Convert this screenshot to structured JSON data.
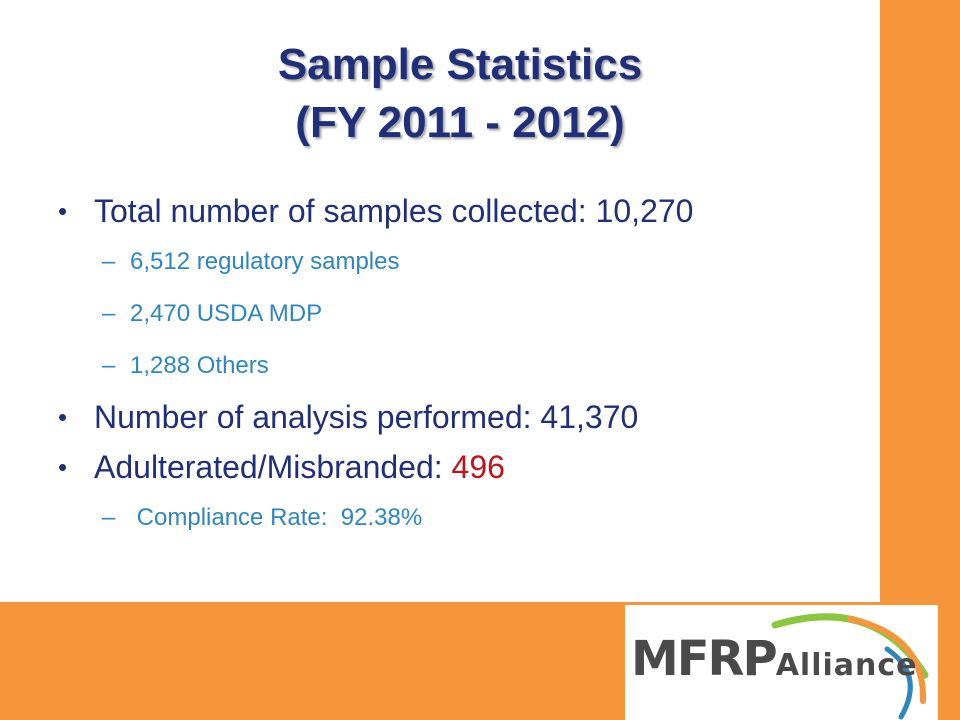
{
  "colors": {
    "orange": "#f7953a",
    "title": "#1f2f7a",
    "body_text": "#1f2f7a",
    "sub_text": "#2e86c1",
    "highlight": "#c0141b",
    "logo_green": "#8cc63f",
    "logo_orange": "#f7953a",
    "logo_blue": "#2e86c1"
  },
  "title": {
    "line1": "Sample Statistics",
    "line2": "(FY 2011 - 2012)"
  },
  "bullets": [
    {
      "text": "Total number of samples collected:  10,270",
      "children": [
        "6,512 regulatory samples",
        "2,470 USDA MDP",
        "1,288 Others"
      ]
    },
    {
      "text": "Number of analysis performed:  41,370"
    },
    {
      "text": "Adulterated/Misbranded: ",
      "highlight": "496",
      "children": [
        " Compliance Rate:  92.38%"
      ]
    }
  ],
  "logo": {
    "main": "MFRP",
    "sub": "Alliance"
  }
}
